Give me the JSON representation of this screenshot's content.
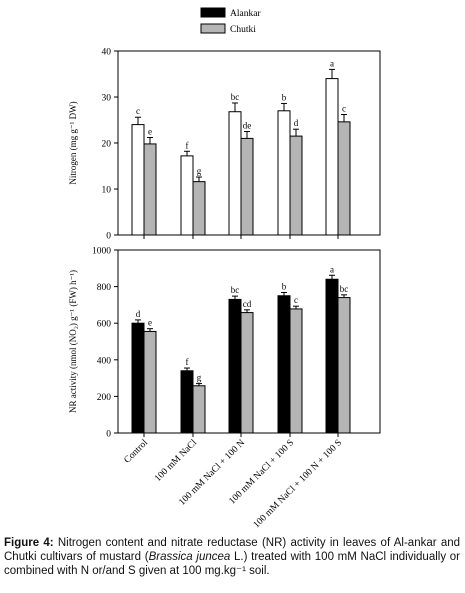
{
  "legend": [
    {
      "label": "Alankar",
      "color": "#000000"
    },
    {
      "label": "Chutki",
      "color": "#b5b5b5"
    }
  ],
  "chart_data": [
    {
      "type": "bar",
      "ylabel": "Nitrogen (mg g⁻¹ DW)",
      "ylim": [
        0,
        40
      ],
      "yticks": [
        0,
        10,
        20,
        30,
        40
      ],
      "categories": [
        "Control",
        "100 mM NaCl",
        "100 mM NaCl + 100 N",
        "100 mM NaCl + 100 S",
        "100 mM NaCl + 100 N + 100 S"
      ],
      "series": [
        {
          "name": "Alankar",
          "color": "#ffffff",
          "values": [
            24,
            17.2,
            26.8,
            27,
            34
          ],
          "errors": [
            1.6,
            1.0,
            1.9,
            1.6,
            2.0
          ],
          "letters": [
            "c",
            "f",
            "bc",
            "b",
            "a"
          ]
        },
        {
          "name": "Chutki",
          "color": "#b5b5b5",
          "values": [
            19.8,
            11.6,
            21,
            21.5,
            24.6
          ],
          "errors": [
            1.4,
            1.0,
            1.5,
            1.5,
            1.6
          ],
          "letters": [
            "e",
            "g",
            "de",
            "d",
            "c"
          ]
        }
      ],
      "grid": false
    },
    {
      "type": "bar",
      "ylabel": "NR activity (nmol (NO₂) g⁻¹ (FW) h⁻¹)",
      "ylim": [
        0,
        1000
      ],
      "yticks": [
        0,
        200,
        400,
        600,
        800,
        1000
      ],
      "categories": [
        "Control",
        "100 mM NaCl",
        "100 mM NaCl + 100 N",
        "100 mM NaCl + 100 S",
        "100 mM NaCl + 100 N + 100 S"
      ],
      "series": [
        {
          "name": "Alankar",
          "color": "#000000",
          "values": [
            600,
            340,
            730,
            750,
            840
          ],
          "errors": [
            18,
            15,
            18,
            18,
            22
          ],
          "letters": [
            "d",
            "f",
            "bc",
            "b",
            "a"
          ]
        },
        {
          "name": "Chutki",
          "color": "#b5b5b5",
          "values": [
            555,
            258,
            658,
            678,
            740
          ],
          "errors": [
            15,
            12,
            15,
            15,
            15
          ],
          "letters": [
            "e",
            "g",
            "cd",
            "c",
            "bc"
          ]
        }
      ],
      "grid": false
    }
  ],
  "caption": {
    "label": "Figure 4:",
    "text_1": " Nitrogen content and nitrate reductase (NR) activity in leaves of Al-ankar and Chutki cultivars of mustard (",
    "species": "Brassica juncea",
    "text_2": " L.) treated with 100 mM NaCl individually or combined with N or/and S given at 100 mg.kg⁻¹ soil."
  }
}
